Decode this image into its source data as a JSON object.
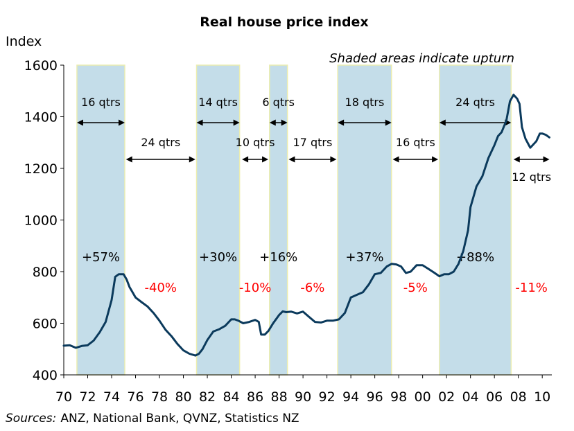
{
  "chart_data": {
    "type": "line",
    "title": "Real house price index",
    "ylabel": "Index",
    "note": "Shaded areas indicate upturn",
    "sources_label": "Sources:",
    "sources_text": "ANZ, National Bank, QVNZ, Statistics NZ",
    "xlim": [
      1970,
      2010.8
    ],
    "ylim": [
      400,
      1600
    ],
    "y_ticks": [
      400,
      600,
      800,
      1000,
      1200,
      1400,
      1600
    ],
    "x_ticks": [
      {
        "value": 1970,
        "label": "70"
      },
      {
        "value": 1972,
        "label": "72"
      },
      {
        "value": 1974,
        "label": "74"
      },
      {
        "value": 1976,
        "label": "76"
      },
      {
        "value": 1978,
        "label": "78"
      },
      {
        "value": 1980,
        "label": "80"
      },
      {
        "value": 1982,
        "label": "82"
      },
      {
        "value": 1984,
        "label": "84"
      },
      {
        "value": 1986,
        "label": "86"
      },
      {
        "value": 1988,
        "label": "88"
      },
      {
        "value": 1990,
        "label": "90"
      },
      {
        "value": 1992,
        "label": "92"
      },
      {
        "value": 1994,
        "label": "94"
      },
      {
        "value": 1996,
        "label": "96"
      },
      {
        "value": 1998,
        "label": "98"
      },
      {
        "value": 2000,
        "label": "00"
      },
      {
        "value": 2002,
        "label": "02"
      },
      {
        "value": 2004,
        "label": "04"
      },
      {
        "value": 2006,
        "label": "06"
      },
      {
        "value": 2008,
        "label": "08"
      },
      {
        "value": 2010,
        "label": "10"
      }
    ],
    "colors": {
      "line": "#0b3a5c",
      "shade": "#c4dde9",
      "shade_edge": "#ecedb0",
      "negative": "#ff0000",
      "positive": "#000000"
    },
    "upturns": [
      {
        "start": 1971.1,
        "end": 1975.1,
        "duration": "16 qtrs",
        "change": "+57%"
      },
      {
        "start": 1981.1,
        "end": 1984.7,
        "duration": "14 qtrs",
        "change": "+30%"
      },
      {
        "start": 1987.2,
        "end": 1988.7,
        "duration": "6 qtrs",
        "change": "+16%"
      },
      {
        "start": 1992.9,
        "end": 1997.4,
        "duration": "18 qtrs",
        "change": "+37%"
      },
      {
        "start": 2001.4,
        "end": 2007.4,
        "duration": "24 qtrs",
        "change": "+88%"
      }
    ],
    "downturns": [
      {
        "start": 1975.2,
        "end": 1981.0,
        "duration": "24 qtrs",
        "change": "-40%"
      },
      {
        "start": 1984.9,
        "end": 1987.1,
        "duration": "10 qtrs",
        "change": "-10%"
      },
      {
        "start": 1988.8,
        "end": 1992.8,
        "duration": "17 qtrs",
        "change": "-6%"
      },
      {
        "start": 1997.5,
        "end": 2001.3,
        "duration": "16 qtrs",
        "change": "-5%"
      },
      {
        "start": 2007.6,
        "end": 2010.6,
        "duration": "12 qtrs",
        "change": "-11%"
      }
    ],
    "series": [
      {
        "x": [
          1970.0,
          1970.5,
          1971.0,
          1971.5,
          1972.0,
          1972.5,
          1973.0,
          1973.5,
          1974.0,
          1974.3,
          1974.6,
          1975.0,
          1975.25,
          1975.5,
          1975.75,
          1976.0,
          1976.5,
          1977.0,
          1977.5,
          1978.0,
          1978.5,
          1979.0,
          1979.5,
          1980.0,
          1980.5,
          1981.0,
          1981.3,
          1981.6,
          1982.0,
          1982.5,
          1983.0,
          1983.5,
          1984.0,
          1984.3,
          1984.6,
          1985.0,
          1985.5,
          1986.0,
          1986.3,
          1986.5,
          1986.8,
          1987.1,
          1987.5,
          1988.0,
          1988.3,
          1988.6,
          1989.0,
          1989.5,
          1990.0,
          1990.5,
          1991.0,
          1991.5,
          1992.0,
          1992.5,
          1993.0,
          1993.5,
          1994.0,
          1994.5,
          1995.0,
          1995.5,
          1996.0,
          1996.5,
          1997.0,
          1997.4,
          1997.8,
          1998.2,
          1998.6,
          1999.0,
          1999.5,
          2000.0,
          2000.5,
          2001.0,
          2001.4,
          2001.8,
          2002.2,
          2002.6,
          2003.0,
          2003.4,
          2003.8,
          2004.0,
          2004.5,
          2005.0,
          2005.5,
          2006.0,
          2006.3,
          2006.6,
          2007.0,
          2007.3,
          2007.6,
          2007.9,
          2008.1,
          2008.3,
          2008.6,
          2009.0,
          2009.2,
          2009.5,
          2009.8,
          2010.0,
          2010.3,
          2010.6
        ],
        "y": [
          513,
          515,
          505,
          512,
          515,
          533,
          565,
          605,
          690,
          780,
          790,
          790,
          770,
          740,
          720,
          700,
          682,
          665,
          640,
          610,
          575,
          550,
          520,
          495,
          482,
          475,
          482,
          500,
          535,
          568,
          577,
          590,
          615,
          615,
          610,
          600,
          605,
          613,
          605,
          556,
          556,
          570,
          600,
          632,
          646,
          643,
          645,
          638,
          645,
          625,
          605,
          603,
          610,
          610,
          615,
          640,
          700,
          710,
          720,
          750,
          790,
          795,
          820,
          830,
          828,
          820,
          795,
          800,
          825,
          825,
          810,
          795,
          782,
          790,
          790,
          800,
          830,
          880,
          960,
          1050,
          1130,
          1170,
          1240,
          1290,
          1325,
          1340,
          1385,
          1460,
          1485,
          1470,
          1450,
          1360,
          1315,
          1280,
          1290,
          1305,
          1335,
          1335,
          1330,
          1320
        ]
      }
    ]
  }
}
